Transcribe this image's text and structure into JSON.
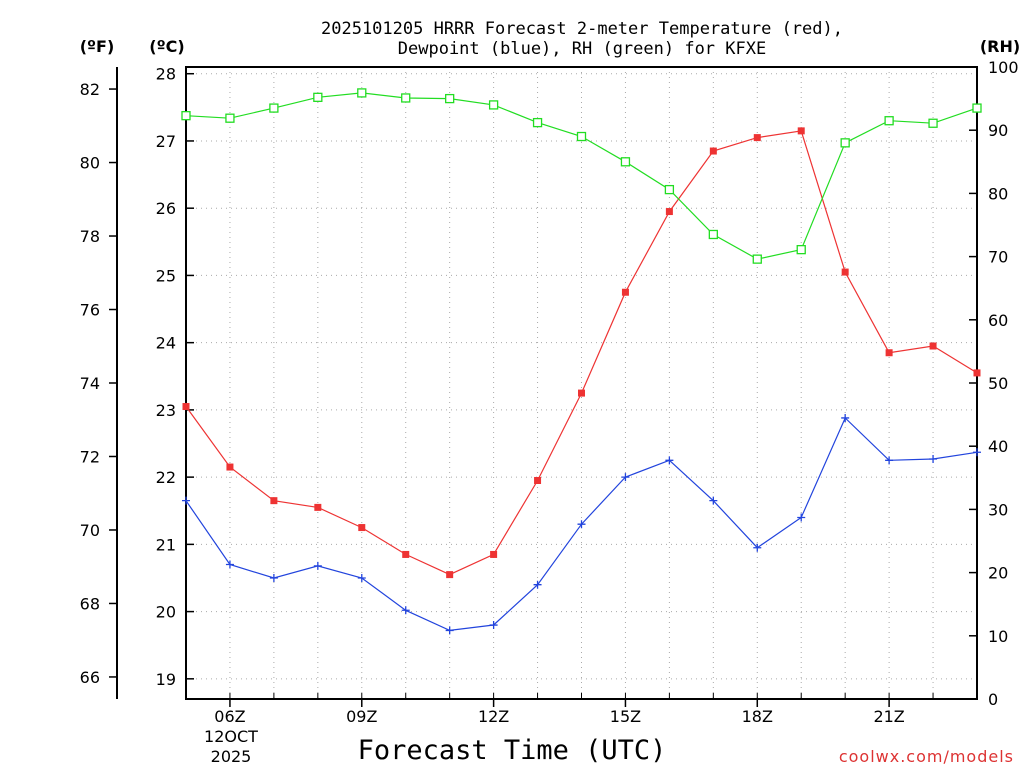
{
  "chart_data": {
    "type": "line",
    "title_lines": [
      "2025101205 HRRR Forecast 2-meter Temperature (red),",
      "Dewpoint (blue), RH (green) for KFXE"
    ],
    "xlabel": "Forecast Time (UTC)",
    "credit": "coolwx.com/models",
    "date_label_lines": [
      "12OCT",
      "2025"
    ],
    "x_hours": [
      5,
      6,
      7,
      8,
      9,
      10,
      11,
      12,
      13,
      14,
      15,
      16,
      17,
      18,
      19,
      20,
      21,
      22,
      23
    ],
    "xlim": [
      5,
      23
    ],
    "x_ticks": [
      {
        "hour": 6,
        "label": "06Z"
      },
      {
        "hour": 9,
        "label": "09Z"
      },
      {
        "hour": 12,
        "label": "12Z"
      },
      {
        "hour": 15,
        "label": "15Z"
      },
      {
        "hour": 18,
        "label": "18Z"
      },
      {
        "hour": 21,
        "label": "21Z"
      }
    ],
    "axes": {
      "fahrenheit": {
        "unit": "(ºF)",
        "ticks": [
          "66",
          "68",
          "70",
          "72",
          "74",
          "76",
          "78",
          "80",
          "82"
        ],
        "ylim": [
          65.4,
          82.6
        ]
      },
      "celsius": {
        "unit": "(ºC)",
        "ticks": [
          "19",
          "20",
          "21",
          "22",
          "23",
          "24",
          "25",
          "26",
          "27",
          "28"
        ],
        "ylim": [
          18.7,
          28.1
        ]
      },
      "rh": {
        "unit": "(RH)",
        "ticks": [
          "0",
          "10",
          "20",
          "30",
          "40",
          "50",
          "60",
          "70",
          "80",
          "90",
          "100"
        ],
        "ylim": [
          0,
          100
        ]
      }
    },
    "series": [
      {
        "name": "Temperature",
        "axis": "celsius",
        "color": "#ee3333",
        "marker": "filled-square",
        "values": [
          23.05,
          22.15,
          21.65,
          21.55,
          21.25,
          20.85,
          20.55,
          20.85,
          21.95,
          23.25,
          24.75,
          25.95,
          26.85,
          27.05,
          27.15,
          25.05,
          23.85,
          23.95,
          23.55
        ]
      },
      {
        "name": "Dewpoint",
        "axis": "celsius",
        "color": "#2244dd",
        "marker": "plus",
        "values": [
          21.65,
          20.7,
          20.5,
          20.68,
          20.5,
          20.02,
          19.72,
          19.8,
          20.4,
          21.3,
          22.0,
          22.25,
          21.65,
          20.95,
          21.4,
          22.88,
          22.25,
          22.27,
          22.37
        ]
      },
      {
        "name": "RH",
        "axis": "rh",
        "color": "#22dd22",
        "marker": "open-square",
        "values": [
          92.3,
          91.9,
          93.5,
          95.2,
          95.9,
          95.1,
          95.0,
          94.0,
          91.2,
          89.0,
          85.0,
          80.6,
          73.5,
          69.6,
          71.1,
          88.0,
          91.5,
          91.1,
          93.5
        ]
      }
    ]
  }
}
